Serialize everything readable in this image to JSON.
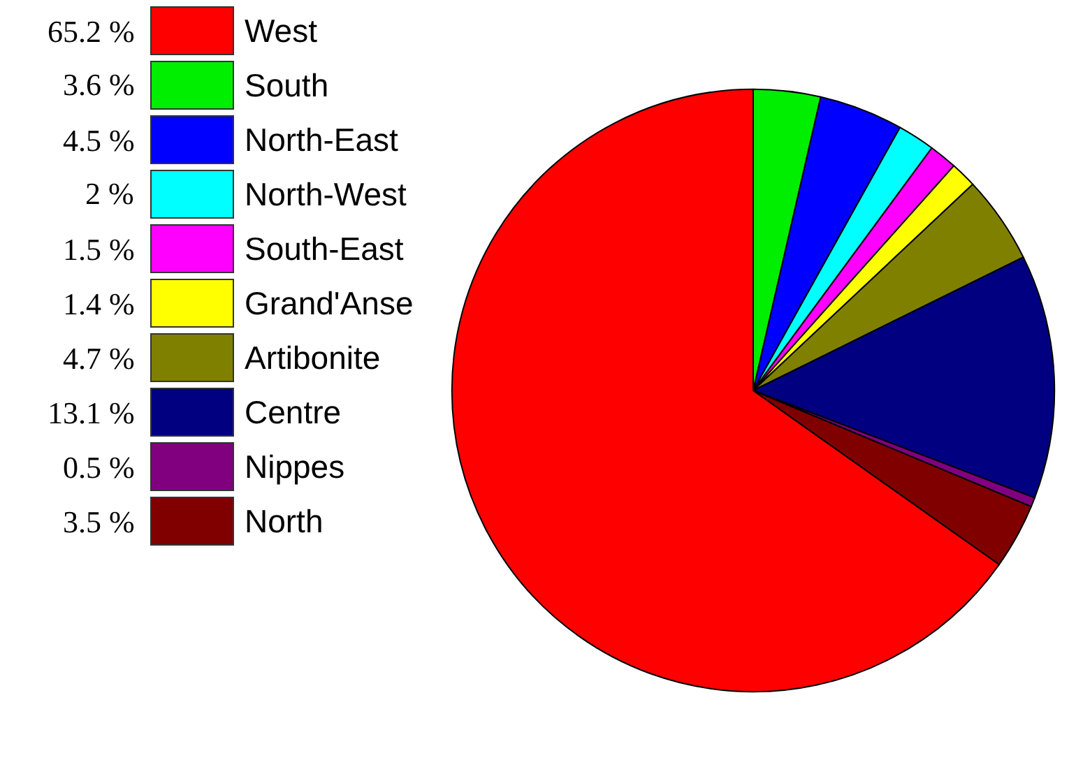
{
  "chart_data": {
    "type": "pie",
    "categories": [
      "West",
      "South",
      "North-East",
      "North-West",
      "South-East",
      "Grand'Anse",
      "Artibonite",
      "Centre",
      "Nippes",
      "North"
    ],
    "values": [
      65.2,
      3.6,
      4.5,
      2,
      1.5,
      1.4,
      4.7,
      13.1,
      0.5,
      3.5
    ],
    "value_labels": [
      "65.2 %",
      "3.6 %",
      "4.5 %",
      "2 %",
      "1.5 %",
      "1.4 %",
      "4.7 %",
      "13.1 %",
      "0.5 %",
      "3.5 %"
    ],
    "colors": [
      "#ff0000",
      "#00ee00",
      "#0000ff",
      "#00ffff",
      "#ff00ff",
      "#ffff00",
      "#808000",
      "#000080",
      "#800080",
      "#800000"
    ],
    "legend": "left"
  }
}
